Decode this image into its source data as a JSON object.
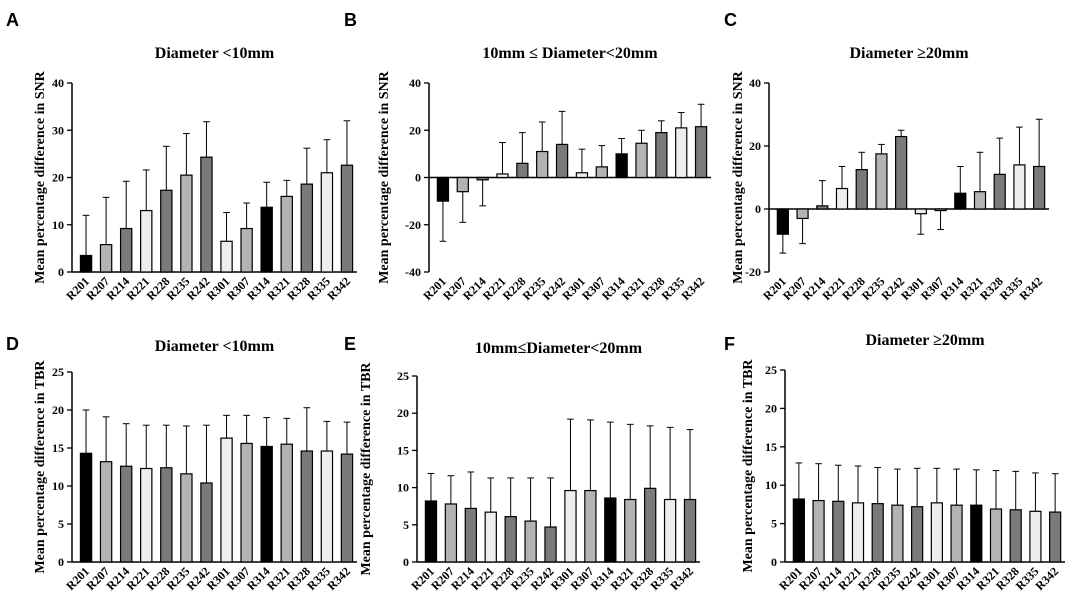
{
  "colors": {
    "black_bar": "#000000",
    "light_bar": "#eeeeee",
    "mid_bar": "#b3b3b3",
    "dark_bar": "#7a7a7a",
    "axis": "#000000"
  },
  "chart_data": [
    {
      "panel": "A",
      "type": "bar",
      "title": "Diameter <10mm",
      "ylabel": "Mean percentage difference in SNR",
      "ylim": [
        0,
        40
      ],
      "yticks": [
        0,
        10,
        20,
        30,
        40
      ],
      "categories": [
        "R201",
        "R207",
        "R214",
        "R221",
        "R228",
        "R235",
        "R242",
        "R301",
        "R307",
        "R314",
        "R321",
        "R328",
        "R335",
        "R342"
      ],
      "fills": [
        "black",
        "mid",
        "dark",
        "light",
        "dark",
        "mid",
        "dark",
        "light",
        "mid",
        "black",
        "mid",
        "dark",
        "light",
        "dark"
      ],
      "values": [
        3.5,
        5.8,
        9.2,
        13.0,
        17.3,
        20.5,
        24.3,
        6.5,
        9.2,
        13.7,
        16.0,
        18.6,
        21.0,
        22.6
      ],
      "err_upper": [
        12.0,
        15.8,
        19.2,
        21.6,
        26.6,
        29.3,
        31.8,
        12.6,
        14.6,
        19.0,
        19.4,
        26.2,
        28.0,
        32.0
      ]
    },
    {
      "panel": "B",
      "type": "bar",
      "title": "10mm ≤ Diameter<20mm",
      "ylabel": "Mean percentage difference in SNR",
      "ylim": [
        -40,
        40
      ],
      "yticks": [
        -40,
        -20,
        0,
        20,
        40
      ],
      "categories": [
        "R201",
        "R207",
        "R214",
        "R221",
        "R228",
        "R235",
        "R242",
        "R301",
        "R307",
        "R314",
        "R321",
        "R328",
        "R335",
        "R342"
      ],
      "fills": [
        "black",
        "mid",
        "dark",
        "light",
        "dark",
        "mid",
        "dark",
        "light",
        "mid",
        "black",
        "mid",
        "dark",
        "light",
        "dark"
      ],
      "values": [
        -10.0,
        -6.0,
        -1.0,
        1.5,
        6.0,
        11.0,
        14.0,
        2.0,
        4.5,
        10.0,
        14.5,
        19.0,
        21.0,
        21.5
      ],
      "err_upper": [
        -27.0,
        -19.0,
        -12.0,
        14.8,
        19.0,
        23.5,
        28.0,
        12.0,
        13.5,
        16.5,
        20.0,
        24.0,
        27.5,
        31.0
      ]
    },
    {
      "panel": "C",
      "type": "bar",
      "title": "Diameter ≥20mm",
      "ylabel": "Mean percentage difference in SNR",
      "ylim": [
        -20,
        40
      ],
      "yticks": [
        -20,
        0,
        20,
        40
      ],
      "categories": [
        "R201",
        "R207",
        "R214",
        "R221",
        "R228",
        "R235",
        "R242",
        "R301",
        "R307",
        "R314",
        "R321",
        "R328",
        "R335",
        "R342"
      ],
      "fills": [
        "black",
        "mid",
        "dark",
        "light",
        "dark",
        "mid",
        "dark",
        "light",
        "mid",
        "black",
        "mid",
        "dark",
        "light",
        "dark"
      ],
      "values": [
        -8.0,
        -3.0,
        1.0,
        6.5,
        12.5,
        17.5,
        23.0,
        -1.5,
        -0.5,
        5.0,
        5.5,
        11.0,
        14.0,
        13.5
      ],
      "err_upper": [
        -14.0,
        -11.0,
        9.0,
        13.5,
        18.0,
        20.5,
        25.0,
        -8.0,
        -6.5,
        13.5,
        18.0,
        22.5,
        26.0,
        28.5
      ]
    },
    {
      "panel": "D",
      "type": "bar",
      "title": "Diameter <10mm",
      "ylabel": "Mean percentage difference in TBR",
      "ylim": [
        0,
        25
      ],
      "yticks": [
        0,
        5,
        10,
        15,
        20,
        25
      ],
      "categories": [
        "R201",
        "R207",
        "R214",
        "R221",
        "R228",
        "R235",
        "R242",
        "R301",
        "R307",
        "R314",
        "R321",
        "R328",
        "R335",
        "R342"
      ],
      "fills": [
        "black",
        "mid",
        "dark",
        "light",
        "dark",
        "mid",
        "dark",
        "light",
        "mid",
        "black",
        "mid",
        "dark",
        "light",
        "dark"
      ],
      "values": [
        14.3,
        13.2,
        12.6,
        12.3,
        12.4,
        11.6,
        10.4,
        16.3,
        15.6,
        15.2,
        15.5,
        14.6,
        14.6,
        14.2
      ],
      "err_upper": [
        20.0,
        19.1,
        18.2,
        18.0,
        18.0,
        17.9,
        18.0,
        19.3,
        19.3,
        19.0,
        18.9,
        20.3,
        18.5,
        18.4
      ]
    },
    {
      "panel": "E",
      "type": "bar",
      "title": "10mm≤Diameter<20mm",
      "ylabel": "Mean percentage difference in TBR",
      "ylim": [
        0,
        25
      ],
      "yticks": [
        0,
        5,
        10,
        15,
        20,
        25
      ],
      "categories": [
        "R201",
        "R207",
        "R214",
        "R221",
        "R228",
        "R235",
        "R242",
        "R301",
        "R307",
        "R314",
        "R321",
        "R328",
        "R335",
        "R342"
      ],
      "fills": [
        "black",
        "mid",
        "dark",
        "light",
        "dark",
        "mid",
        "dark",
        "light",
        "mid",
        "black",
        "mid",
        "dark",
        "light",
        "dark"
      ],
      "values": [
        8.2,
        7.8,
        7.2,
        6.7,
        6.1,
        5.5,
        4.7,
        9.6,
        9.6,
        8.6,
        8.4,
        9.9,
        8.4,
        8.4
      ],
      "err_upper": [
        11.9,
        11.6,
        12.1,
        11.3,
        11.3,
        11.3,
        11.3,
        19.2,
        19.1,
        18.8,
        18.5,
        18.3,
        18.1,
        17.8
      ]
    },
    {
      "panel": "F",
      "type": "bar",
      "title": "Diameter ≥20mm",
      "ylabel": "Mean percentage difference in TBR",
      "ylim": [
        0,
        25
      ],
      "yticks": [
        0,
        5,
        10,
        15,
        20,
        25
      ],
      "categories": [
        "R201",
        "R207",
        "R214",
        "R221",
        "R228",
        "R235",
        "R242",
        "R301",
        "R307",
        "R314",
        "R321",
        "R328",
        "R335",
        "R342"
      ],
      "fills": [
        "black",
        "mid",
        "dark",
        "light",
        "dark",
        "mid",
        "dark",
        "light",
        "mid",
        "black",
        "mid",
        "dark",
        "light",
        "dark"
      ],
      "values": [
        8.2,
        8.0,
        7.9,
        7.7,
        7.6,
        7.4,
        7.2,
        7.7,
        7.4,
        7.4,
        6.9,
        6.8,
        6.6,
        6.5
      ],
      "err_upper": [
        12.9,
        12.8,
        12.6,
        12.5,
        12.3,
        12.1,
        12.2,
        12.2,
        12.1,
        12.0,
        11.9,
        11.8,
        11.6,
        11.5
      ]
    }
  ]
}
